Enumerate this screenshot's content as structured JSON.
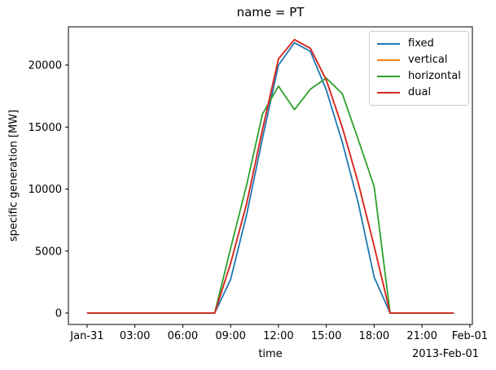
{
  "chart_data": {
    "type": "line",
    "title": "name = PT",
    "xlabel": "time",
    "ylabel": "specific generation [MW]",
    "x_offset_label": "2013-Feb-01",
    "grid": false,
    "legend_position": "upper-right",
    "x_hours": [
      0,
      1,
      2,
      3,
      4,
      5,
      6,
      7,
      8,
      9,
      10,
      11,
      12,
      13,
      14,
      15,
      16,
      17,
      18,
      19,
      20,
      21,
      22,
      23
    ],
    "x_tick_hours": [
      0,
      3,
      6,
      9,
      12,
      15,
      18,
      21,
      24
    ],
    "x_tick_labels": [
      "Jan-31",
      "03:00",
      "06:00",
      "09:00",
      "12:00",
      "15:00",
      "18:00",
      "21:00",
      "Feb-01"
    ],
    "y_ticks": [
      0,
      5000,
      10000,
      15000,
      20000
    ],
    "xlim_hours": [
      -1.17,
      24.16
    ],
    "ylim": [
      -918,
      23082
    ],
    "series": [
      {
        "name": "fixed",
        "color": "#1f77b4",
        "values": [
          0,
          0,
          0,
          0,
          0,
          0,
          0,
          0,
          0,
          2700,
          7900,
          14100,
          20000,
          21800,
          21100,
          18000,
          13800,
          8900,
          2900,
          0,
          0,
          0,
          0,
          0
        ]
      },
      {
        "name": "vertical",
        "color": "#ff7f0e",
        "values": [
          0,
          0,
          0,
          0,
          0,
          0,
          0,
          0,
          0,
          4000,
          8800,
          14800,
          20500,
          22050,
          21350,
          18800,
          15000,
          10500,
          5400,
          0,
          0,
          0,
          0,
          0
        ]
      },
      {
        "name": "horizontal",
        "color": "#2ca02c",
        "values": [
          0,
          0,
          0,
          0,
          0,
          0,
          0,
          0,
          0,
          5200,
          10300,
          16050,
          18300,
          16400,
          18050,
          18950,
          17700,
          14000,
          10200,
          0,
          0,
          0,
          0,
          0
        ]
      },
      {
        "name": "dual",
        "color": "#d62728",
        "values": [
          0,
          0,
          0,
          0,
          0,
          0,
          0,
          0,
          0,
          4000,
          8800,
          14800,
          20500,
          22050,
          21350,
          18800,
          15000,
          10500,
          5400,
          0,
          0,
          0,
          0,
          0
        ]
      }
    ]
  }
}
